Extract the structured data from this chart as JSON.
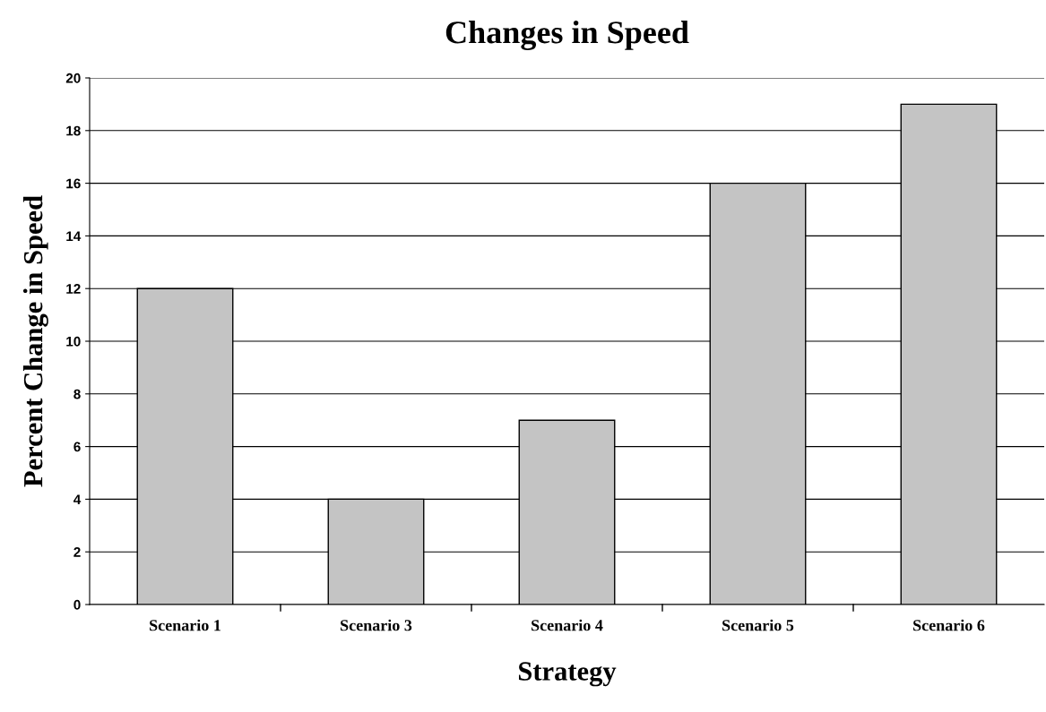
{
  "chart_data": {
    "type": "bar",
    "title": "Changes in Speed",
    "xlabel": "Strategy",
    "ylabel": "Percent Change in Speed",
    "categories": [
      "Scenario 1",
      "Scenario 3",
      "Scenario 4",
      "Scenario 5",
      "Scenario 6"
    ],
    "values": [
      12,
      4,
      7,
      16,
      19
    ],
    "color": "#c4c4c4",
    "ylim": [
      0,
      20
    ],
    "yticks": [
      0,
      2,
      4,
      6,
      8,
      10,
      12,
      14,
      16,
      18,
      20
    ],
    "grid": "y",
    "legend": false
  }
}
